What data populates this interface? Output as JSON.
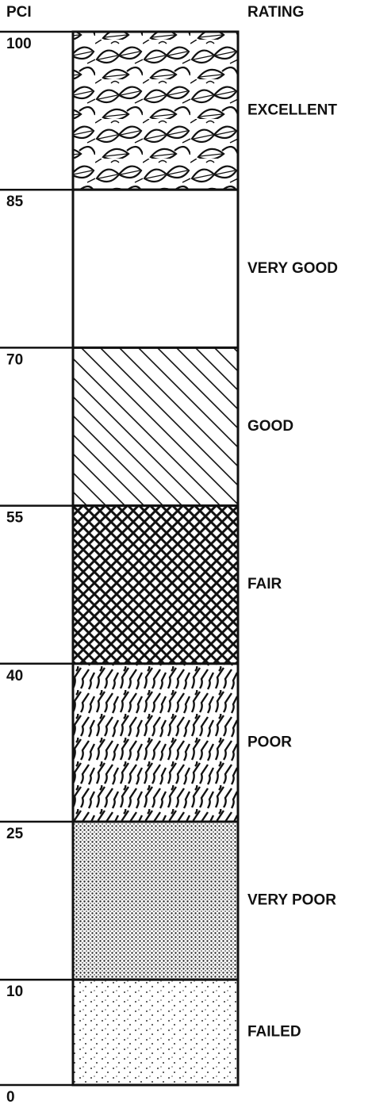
{
  "header": {
    "left": "PCI",
    "right": "RATING"
  },
  "scale": [
    100,
    85,
    70,
    55,
    40,
    25,
    10,
    0
  ],
  "bands": [
    {
      "rating": "EXCELLENT"
    },
    {
      "rating": "VERY GOOD"
    },
    {
      "rating": "GOOD"
    },
    {
      "rating": "FAIR"
    },
    {
      "rating": "POOR"
    },
    {
      "rating": "VERY POOR"
    },
    {
      "rating": "FAILED"
    }
  ]
}
